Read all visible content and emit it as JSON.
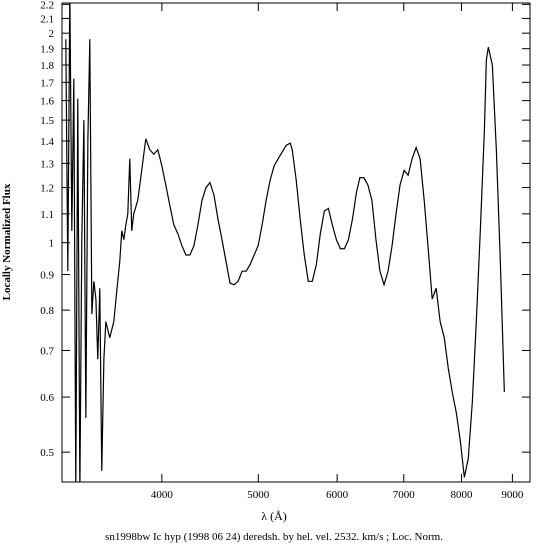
{
  "chart_data": {
    "type": "line",
    "caption": "sn1998bw Ic hyp (1998 06 24) deredsh. by hel. vel.  2532. km/s ;  Loc. Norm.",
    "x_label": "λ (Å)",
    "y_label": "Locally Normalized Flux",
    "x_scale": "log",
    "y_scale": "log",
    "xlim": [
      3175,
      9374
    ],
    "ylim": [
      0.453,
      2.21
    ],
    "xticks": [
      4000,
      5000,
      6000,
      7000,
      8000,
      9000
    ],
    "yticks": [
      0.5,
      0.6,
      0.7,
      0.8,
      0.9,
      1,
      1.1,
      1.2,
      1.3,
      1.4,
      1.5,
      1.6,
      1.7,
      1.8,
      1.9,
      2,
      2.1,
      2.2
    ],
    "series": [
      {
        "color": "#000000",
        "x": [
          3203,
          3218,
          3233,
          3248,
          3263,
          3278,
          3293,
          3309,
          3324,
          3340,
          3355,
          3371,
          3386,
          3402,
          3418,
          3434,
          3449,
          3465,
          3481,
          3498,
          3514,
          3546,
          3579,
          3612,
          3629,
          3646,
          3663,
          3680,
          3697,
          3714,
          3731,
          3748,
          3783,
          3818,
          3854,
          3890,
          3926,
          3963,
          4000,
          4037,
          4075,
          4113,
          4151,
          4190,
          4229,
          4268,
          4308,
          4348,
          4389,
          4430,
          4471,
          4513,
          4555,
          4597,
          4640,
          4683,
          4727,
          4771,
          4816,
          4861,
          4906,
          4952,
          4998,
          5044,
          5091,
          5139,
          5187,
          5235,
          5284,
          5333,
          5383,
          5408,
          5458,
          5509,
          5561,
          5613,
          5665,
          5718,
          5771,
          5825,
          5880,
          5934,
          5990,
          6045,
          6102,
          6159,
          6216,
          6274,
          6324,
          6384,
          6443,
          6503,
          6564,
          6625,
          6688,
          6750,
          6813,
          6876,
          6940,
          7006,
          7071,
          7136,
          7203,
          7270,
          7339,
          7407,
          7476,
          7545,
          7615,
          7688,
          7759,
          7831,
          7904,
          7977,
          8053,
          8127,
          8203,
          8279,
          8356,
          8435,
          8474,
          8513,
          8592,
          8672,
          8752,
          8834
        ],
        "values": [
          1.96,
          0.91,
          2.3,
          1.04,
          1.72,
          0.44,
          1.61,
          0.44,
          1.01,
          1.5,
          0.56,
          1.41,
          1.96,
          0.79,
          0.88,
          0.83,
          0.68,
          0.86,
          0.47,
          0.68,
          0.77,
          0.73,
          0.77,
          0.88,
          0.94,
          1.04,
          1.01,
          1.06,
          1.1,
          1.32,
          1.04,
          1.1,
          1.15,
          1.27,
          1.41,
          1.36,
          1.34,
          1.36,
          1.29,
          1.21,
          1.13,
          1.06,
          1.03,
          0.99,
          0.96,
          0.96,
          0.99,
          1.06,
          1.15,
          1.2,
          1.22,
          1.17,
          1.08,
          1.01,
          0.94,
          0.875,
          0.87,
          0.88,
          0.91,
          0.91,
          0.93,
          0.96,
          0.99,
          1.06,
          1.15,
          1.23,
          1.29,
          1.32,
          1.35,
          1.38,
          1.39,
          1.36,
          1.23,
          1.08,
          0.96,
          0.88,
          0.88,
          0.93,
          1.03,
          1.11,
          1.12,
          1.06,
          1.01,
          0.98,
          0.98,
          1.01,
          1.08,
          1.18,
          1.24,
          1.24,
          1.21,
          1.15,
          1.01,
          0.91,
          0.87,
          0.91,
          0.99,
          1.1,
          1.21,
          1.27,
          1.25,
          1.32,
          1.37,
          1.32,
          1.15,
          0.98,
          0.83,
          0.86,
          0.77,
          0.73,
          0.66,
          0.61,
          0.57,
          0.52,
          0.46,
          0.49,
          0.59,
          0.77,
          1.04,
          1.45,
          1.83,
          1.91,
          1.8,
          1.36,
          0.94,
          0.61
        ]
      }
    ]
  }
}
